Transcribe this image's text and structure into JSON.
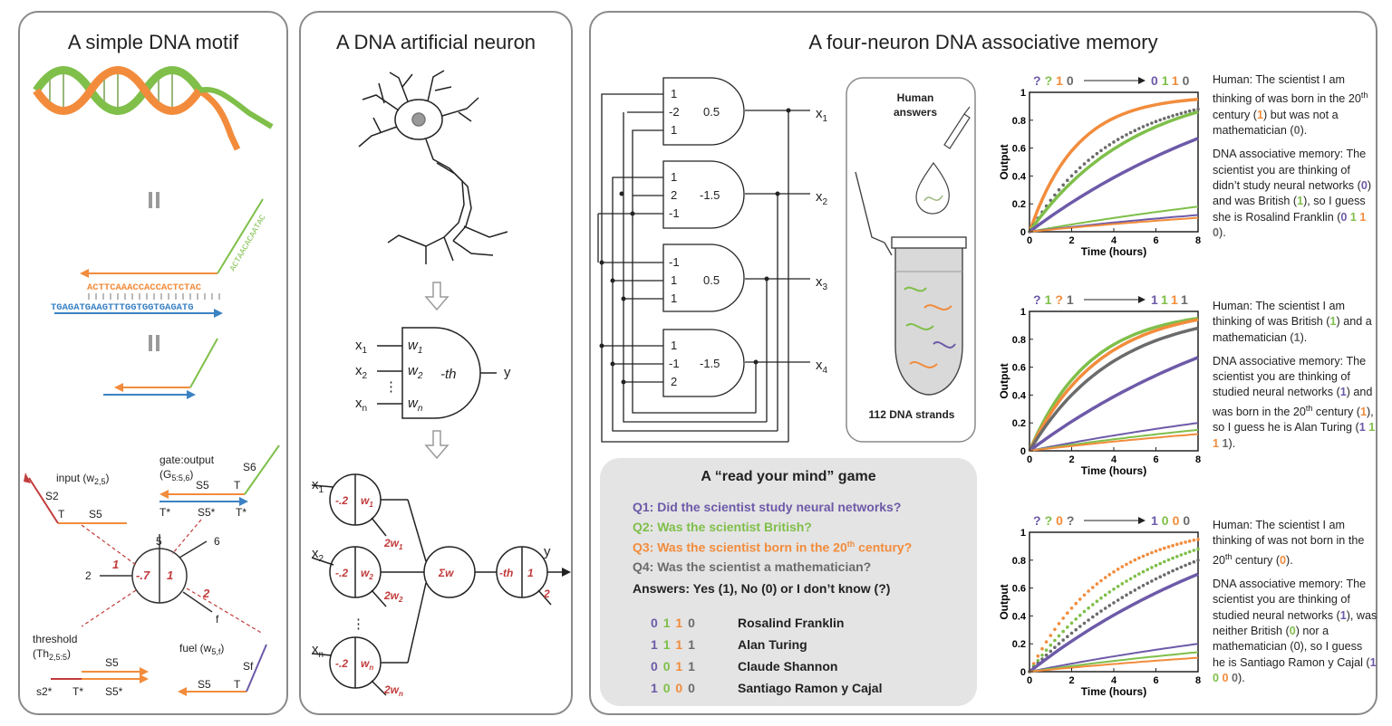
{
  "colors": {
    "purple": "#6d5aa8",
    "green": "#7fbf4a",
    "orange": "#f28c3c",
    "gray": "#6b6b6b",
    "red": "#c23b3b",
    "blue": "#3b82c4"
  },
  "panel1": {
    "title": "A simple DNA motif",
    "seq_top": "ACTTCAAACCACCACTCTAC",
    "seq_bottom": "TGAGATGAAGTTTGGTGGTGAGATG",
    "seq_green": "ACTAACACAATAC",
    "input_label": "input (w",
    "input_sub": "2,5",
    "input_close": ")",
    "gate_label": "gate:output",
    "gate_paren": "(G",
    "gate_sub": "5:5,6",
    "gate_close": ")",
    "threshold_label": "threshold",
    "threshold_paren": "(Th",
    "threshold_sub": "2,5:5",
    "threshold_close": ")",
    "fuel_label": "fuel (w",
    "fuel_sub": "5,f",
    "fuel_close": ")",
    "node_left": "-.7",
    "node_right": "1",
    "labels": {
      "S2": "S2",
      "T": "T",
      "S5": "S5",
      "S6": "S6",
      "Tstar": "T*",
      "S5star": "S5*",
      "Sf": "Sf",
      "s2star": "s2*",
      "n2": "2",
      "n5": "5",
      "n6": "6",
      "nf": "f",
      "w1": "1",
      "w2": "2"
    }
  },
  "panel2": {
    "title": "A DNA artificial neuron",
    "x_labels": [
      "x",
      "x",
      "x"
    ],
    "x_subs": [
      "1",
      "2",
      "n"
    ],
    "w_labels": [
      "w",
      "w",
      "w"
    ],
    "w_subs": [
      "1",
      "2",
      "n"
    ],
    "th": "-th",
    "y": "y",
    "neg": "-.2",
    "sum": "Σw",
    "out_th": "-th",
    "out_one": "1",
    "out_two": "2",
    "two_w": "2w",
    "vdots": "⋮"
  },
  "panel3": {
    "title": "A four-neuron DNA associative memory",
    "gates": [
      {
        "weights": [
          "1",
          "-2",
          "1"
        ],
        "threshold": "0.5",
        "out": "x",
        "sub": "1"
      },
      {
        "weights": [
          "1",
          "2",
          "-1"
        ],
        "threshold": "-1.5",
        "out": "x",
        "sub": "2"
      },
      {
        "weights": [
          "-1",
          "1",
          "1"
        ],
        "threshold": "0.5",
        "out": "x",
        "sub": "3"
      },
      {
        "weights": [
          "1",
          "-1",
          "2"
        ],
        "threshold": "-1.5",
        "out": "x",
        "sub": "4"
      }
    ],
    "tube_label": "Human answers",
    "tube_label_1": "Human",
    "tube_label_2": "answers",
    "strands": "112 DNA strands",
    "game": {
      "title": "A “read your mind” game",
      "q1": "Q1: Did the scientist study neural networks?",
      "q2": "Q2: Was the scientist British?",
      "q3_pre": "Q3: Was the scientist born in the 20",
      "q3_sup": "th",
      "q3_post": " century?",
      "q4": "Q4: Was the scientist a mathematician?",
      "answers": "Answers: Yes (1), No (0) or I don’t know (?)",
      "rows": [
        {
          "code": [
            "0",
            "1",
            "1",
            "0"
          ],
          "name": "Rosalind Franklin"
        },
        {
          "code": [
            "1",
            "1",
            "1",
            "1"
          ],
          "name": "Alan Turing"
        },
        {
          "code": [
            "0",
            "0",
            "1",
            "1"
          ],
          "name": "Claude Shannon"
        },
        {
          "code": [
            "1",
            "0",
            "0",
            "0"
          ],
          "name": "Santiago Ramon y Cajal"
        }
      ]
    }
  },
  "charts": [
    {
      "input": [
        "?",
        "?",
        "1",
        "0"
      ],
      "output": [
        "0",
        "1",
        "1",
        "0"
      ],
      "ylabel": "Output",
      "xlabel": "Time (hours)",
      "xticks": [
        "0",
        "2",
        "4",
        "6",
        "8"
      ],
      "yticks": [
        "0",
        "0.2",
        "0.4",
        "0.6",
        "0.8",
        "1"
      ]
    },
    {
      "input": [
        "?",
        "1",
        "?",
        "1"
      ],
      "output": [
        "1",
        "1",
        "1",
        "1"
      ],
      "ylabel": "Output",
      "xlabel": "Time (hours)",
      "xticks": [
        "0",
        "2",
        "4",
        "6",
        "8"
      ],
      "yticks": [
        "0",
        "0.2",
        "0.4",
        "0.6",
        "0.8",
        "1"
      ]
    },
    {
      "input": [
        "?",
        "?",
        "0",
        "?"
      ],
      "output": [
        "1",
        "0",
        "0",
        "0"
      ],
      "ylabel": "Output",
      "xlabel": "Time (hours)",
      "xticks": [
        "0",
        "2",
        "4",
        "6",
        "8"
      ],
      "yticks": [
        "0",
        "0.2",
        "0.4",
        "0.6",
        "0.8",
        "1"
      ]
    }
  ],
  "side_text": [
    {
      "human_a": "Human: The scientist I am thinking of was born in the 20",
      "human_sup": "th",
      "human_b": " century (",
      "human_v1": "1",
      "human_c": ") but was not a mathematician (",
      "human_v2": "0",
      "human_d": ").",
      "dna_a": "DNA associative memory: The scientist you are thinking of didn’t study neural networks (",
      "dna_v1": "0",
      "dna_b": ") and was British (",
      "dna_v2": "1",
      "dna_c": "), so I guess she is Rosalind Franklin (",
      "dna_code": [
        "0",
        "1",
        "1",
        "0"
      ],
      "dna_d": ")."
    },
    {
      "human_a": "Human: The scientist I am thinking of was British (",
      "human_v1": "1",
      "human_b": ") and a mathematician (",
      "human_v2": "1",
      "human_c": ").",
      "dna_a": "DNA associative memory: The scientist you are thinking of studied neural networks (",
      "dna_v1": "1",
      "dna_b": ") and was born in the 20",
      "dna_sup": "th",
      "dna_c": " century (",
      "dna_v2": "1",
      "dna_d": "), so I guess he is Alan Turing (",
      "dna_code": [
        "1",
        "1",
        "1",
        "1"
      ],
      "dna_e": ")."
    },
    {
      "human_a": "Human: The scientist I am thinking of was not born in the 20",
      "human_sup": "th",
      "human_b": " century (",
      "human_v1": "0",
      "human_c": ").",
      "dna_a": "DNA associative memory: The scientist you are thinking of studied neural networks (",
      "dna_v1": "1",
      "dna_b": "), was neither British (",
      "dna_v2": "0",
      "dna_c": ") nor a mathematician (0), so I guess he is Santiago Ramon y Cajal (",
      "dna_code": [
        "1",
        "0",
        "0",
        "0"
      ],
      "dna_d": ")."
    }
  ]
}
